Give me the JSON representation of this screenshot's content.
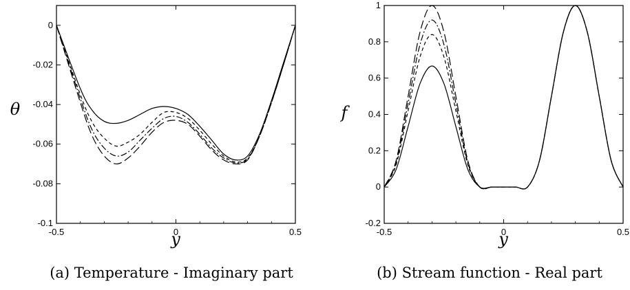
{
  "chart_data": [
    {
      "type": "line",
      "caption": "(a) Temperature - Imaginary part",
      "xlabel": "y",
      "ylabel": "θ",
      "xlim": [
        -0.5,
        0.5
      ],
      "ylim": [
        -0.1,
        0.01
      ],
      "xticks": [
        "-0.5",
        "0",
        "0.5"
      ],
      "yticks": [
        "0",
        "-0.02",
        "-0.04",
        "-0.06",
        "-0.08",
        "-0.1"
      ],
      "series": [
        {
          "style": "solid",
          "x": [
            -0.5,
            -0.4,
            -0.35,
            -0.3,
            -0.25,
            -0.2,
            -0.15,
            -0.1,
            -0.05,
            0.0,
            0.05,
            0.1,
            0.15,
            0.2,
            0.25,
            0.3,
            0.35,
            0.4,
            0.45,
            0.5
          ],
          "y": [
            0.0,
            -0.032,
            -0.043,
            -0.0485,
            -0.0495,
            -0.048,
            -0.045,
            -0.042,
            -0.041,
            -0.042,
            -0.045,
            -0.051,
            -0.058,
            -0.065,
            -0.068,
            -0.066,
            -0.055,
            -0.038,
            -0.019,
            0.0
          ]
        },
        {
          "style": "dashed",
          "x": [
            -0.5,
            -0.4,
            -0.35,
            -0.3,
            -0.25,
            -0.2,
            -0.15,
            -0.1,
            -0.05,
            0.0,
            0.05,
            0.1,
            0.15,
            0.2,
            0.25,
            0.3,
            0.35,
            0.4,
            0.45,
            0.5
          ],
          "y": [
            0.0,
            -0.035,
            -0.049,
            -0.057,
            -0.061,
            -0.059,
            -0.055,
            -0.049,
            -0.044,
            -0.044,
            -0.047,
            -0.053,
            -0.06,
            -0.066,
            -0.069,
            -0.067,
            -0.056,
            -0.039,
            -0.02,
            0.0
          ]
        },
        {
          "style": "dash-dot",
          "x": [
            -0.5,
            -0.4,
            -0.35,
            -0.3,
            -0.25,
            -0.2,
            -0.15,
            -0.1,
            -0.05,
            0.0,
            0.05,
            0.1,
            0.15,
            0.2,
            0.25,
            0.3,
            0.35,
            0.4,
            0.45,
            0.5
          ],
          "y": [
            0.0,
            -0.037,
            -0.053,
            -0.062,
            -0.066,
            -0.064,
            -0.058,
            -0.052,
            -0.047,
            -0.046,
            -0.049,
            -0.055,
            -0.062,
            -0.067,
            -0.0695,
            -0.0675,
            -0.056,
            -0.039,
            -0.02,
            0.0
          ]
        },
        {
          "style": "long-dash",
          "x": [
            -0.5,
            -0.4,
            -0.35,
            -0.3,
            -0.25,
            -0.2,
            -0.15,
            -0.1,
            -0.05,
            0.0,
            0.05,
            0.1,
            0.15,
            0.2,
            0.25,
            0.3,
            0.35,
            0.4,
            0.45,
            0.5
          ],
          "y": [
            0.0,
            -0.039,
            -0.056,
            -0.066,
            -0.07,
            -0.067,
            -0.061,
            -0.054,
            -0.049,
            -0.048,
            -0.05,
            -0.056,
            -0.063,
            -0.068,
            -0.07,
            -0.068,
            -0.056,
            -0.039,
            -0.02,
            0.0
          ]
        }
      ]
    },
    {
      "type": "line",
      "caption": "(b) Stream function - Real part",
      "xlabel": "y",
      "ylabel": "f",
      "xlim": [
        -0.5,
        0.5
      ],
      "ylim": [
        -0.2,
        1.0
      ],
      "xticks": [
        "-0.5",
        "0",
        "0.5"
      ],
      "yticks": [
        "-0.2",
        "0",
        "0.2",
        "0.4",
        "0.6",
        "0.8",
        "1"
      ],
      "series": [
        {
          "style": "solid",
          "x": [
            -0.5,
            -0.45,
            -0.4,
            -0.35,
            -0.3,
            -0.25,
            -0.2,
            -0.15,
            -0.1,
            -0.05,
            0.0,
            0.05,
            0.1,
            0.15,
            0.2,
            0.25,
            0.3,
            0.35,
            0.4,
            0.45,
            0.5
          ],
          "y": [
            0.0,
            0.097,
            0.333,
            0.57,
            0.667,
            0.57,
            0.333,
            0.097,
            0.0,
            0.0,
            0.0,
            0.0,
            0.0,
            0.146,
            0.5,
            0.854,
            1.0,
            0.854,
            0.5,
            0.146,
            0.0
          ]
        },
        {
          "style": "dashed",
          "x": [
            -0.5,
            -0.45,
            -0.4,
            -0.35,
            -0.3,
            -0.25,
            -0.2,
            -0.15,
            -0.1,
            -0.05,
            0.0,
            0.05,
            0.1,
            0.15,
            0.2,
            0.25,
            0.3,
            0.35,
            0.4,
            0.45,
            0.5
          ],
          "y": [
            0.0,
            0.123,
            0.42,
            0.717,
            0.84,
            0.717,
            0.42,
            0.123,
            0.0,
            0.0,
            0.0,
            0.0,
            0.0,
            0.146,
            0.5,
            0.854,
            1.0,
            0.854,
            0.5,
            0.146,
            0.0
          ]
        },
        {
          "style": "dash-dot",
          "x": [
            -0.5,
            -0.45,
            -0.4,
            -0.35,
            -0.3,
            -0.25,
            -0.2,
            -0.15,
            -0.1,
            -0.05,
            0.0,
            0.05,
            0.1,
            0.15,
            0.2,
            0.25,
            0.3,
            0.35,
            0.4,
            0.45,
            0.5
          ],
          "y": [
            0.0,
            0.134,
            0.46,
            0.785,
            0.92,
            0.785,
            0.46,
            0.134,
            0.0,
            0.0,
            0.0,
            0.0,
            0.0,
            0.146,
            0.5,
            0.854,
            1.0,
            0.854,
            0.5,
            0.146,
            0.0
          ]
        },
        {
          "style": "long-dash",
          "x": [
            -0.5,
            -0.45,
            -0.4,
            -0.35,
            -0.3,
            -0.25,
            -0.2,
            -0.15,
            -0.1,
            -0.05,
            0.0,
            0.05,
            0.1,
            0.15,
            0.2,
            0.25,
            0.3,
            0.35,
            0.4,
            0.45,
            0.5
          ],
          "y": [
            0.0,
            0.146,
            0.5,
            0.854,
            1.0,
            0.854,
            0.5,
            0.146,
            0.0,
            0.0,
            0.0,
            0.0,
            0.0,
            0.146,
            0.5,
            0.854,
            1.0,
            0.854,
            0.5,
            0.146,
            0.0
          ]
        }
      ]
    }
  ]
}
